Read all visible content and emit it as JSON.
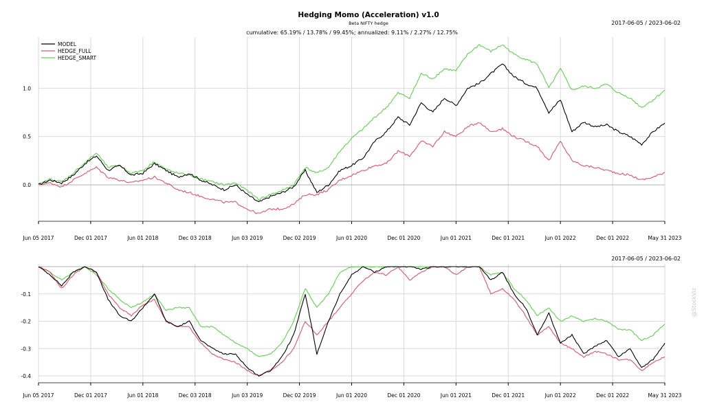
{
  "colors": {
    "MODEL": "#000000",
    "HEDGE_FULL": "#df536b",
    "HEDGE_SMART": "#61d04f",
    "grid": "#d9d9d9"
  },
  "chart_data": [
    {
      "type": "line",
      "title": "Hedging Momo (Acceleration) v1.0",
      "subtitle": "Beta NIFTY hedge",
      "stats": "cumulative: 65.19% / 13.78% / 99.45%; annualized: 9.11% / 2.27% / 12.75%",
      "date_range": "2017-06-05 / 2023-06-02",
      "legend_position": "top-left",
      "x_ticks": [
        "Jun 05 2017",
        "Dec 01 2017",
        "Jun 01 2018",
        "Dec 03 2018",
        "Jun 03 2019",
        "Dec 02 2019",
        "Jun 01 2020",
        "Dec 01 2020",
        "Jun 01 2021",
        "Dec 01 2021",
        "Jun 01 2022",
        "Dec 01 2022",
        "May 31 2023"
      ],
      "y_ticks": [
        "0.0",
        "0.5",
        "1.0"
      ],
      "ylim": [
        -0.32,
        1.5
      ],
      "grid": true,
      "series": [
        {
          "name": "MODEL",
          "values": [
            0.0,
            0.05,
            0.02,
            0.1,
            0.22,
            0.3,
            0.15,
            0.2,
            0.1,
            0.12,
            0.22,
            0.15,
            0.08,
            0.12,
            0.05,
            0.0,
            -0.05,
            0.0,
            -0.1,
            -0.18,
            -0.12,
            -0.08,
            -0.02,
            0.15,
            -0.08,
            0.0,
            0.15,
            0.2,
            0.28,
            0.45,
            0.55,
            0.7,
            0.62,
            0.85,
            0.75,
            0.9,
            0.82,
            1.0,
            1.05,
            1.15,
            1.25,
            1.12,
            1.05,
            1.0,
            0.75,
            0.88,
            0.55,
            0.65,
            0.6,
            0.62,
            0.55,
            0.5,
            0.42,
            0.55,
            0.64
          ]
        },
        {
          "name": "HEDGE_FULL",
          "values": [
            0.0,
            0.02,
            -0.02,
            0.05,
            0.12,
            0.18,
            0.08,
            0.05,
            0.02,
            0.05,
            0.08,
            0.02,
            -0.05,
            -0.08,
            -0.12,
            -0.15,
            -0.18,
            -0.18,
            -0.25,
            -0.3,
            -0.25,
            -0.25,
            -0.2,
            -0.1,
            -0.1,
            -0.05,
            0.05,
            0.1,
            0.15,
            0.2,
            0.22,
            0.35,
            0.3,
            0.45,
            0.4,
            0.55,
            0.5,
            0.6,
            0.65,
            0.55,
            0.58,
            0.5,
            0.45,
            0.4,
            0.25,
            0.45,
            0.25,
            0.2,
            0.18,
            0.15,
            0.12,
            0.1,
            0.05,
            0.08,
            0.13
          ]
        },
        {
          "name": "HEDGE_SMART",
          "values": [
            0.0,
            0.06,
            0.03,
            0.12,
            0.23,
            0.33,
            0.18,
            0.2,
            0.12,
            0.15,
            0.24,
            0.16,
            0.12,
            0.1,
            0.06,
            0.03,
            0.0,
            0.02,
            -0.06,
            -0.15,
            -0.1,
            -0.06,
            0.0,
            0.18,
            0.12,
            0.18,
            0.35,
            0.48,
            0.58,
            0.7,
            0.8,
            0.95,
            0.9,
            1.15,
            1.1,
            1.2,
            1.18,
            1.35,
            1.45,
            1.38,
            1.45,
            1.35,
            1.3,
            1.25,
            1.0,
            1.2,
            0.98,
            1.02,
            1.0,
            1.04,
            0.95,
            0.9,
            0.8,
            0.88,
            0.98
          ]
        }
      ]
    },
    {
      "type": "line",
      "date_range": "2017-06-05 / 2023-06-02",
      "x_ticks": [
        "Jun 05 2017",
        "Dec 01 2017",
        "Jun 01 2018",
        "Dec 03 2018",
        "Jun 03 2019",
        "Dec 02 2019",
        "Jun 01 2020",
        "Dec 01 2020",
        "Jun 01 2021",
        "Dec 01 2021",
        "Jun 01 2022",
        "Dec 01 2022",
        "May 31 2023"
      ],
      "y_ticks": [
        "-0.1",
        "-0.2",
        "-0.3",
        "-0.4"
      ],
      "ylim": [
        -0.41,
        0.0
      ],
      "grid": true,
      "series": [
        {
          "name": "MODEL",
          "values": [
            0.0,
            -0.03,
            -0.07,
            -0.02,
            0.0,
            -0.02,
            -0.12,
            -0.18,
            -0.2,
            -0.15,
            -0.1,
            -0.2,
            -0.22,
            -0.2,
            -0.27,
            -0.3,
            -0.32,
            -0.32,
            -0.37,
            -0.4,
            -0.38,
            -0.33,
            -0.25,
            -0.1,
            -0.32,
            -0.2,
            -0.1,
            -0.03,
            0.0,
            -0.02,
            0.0,
            0.0,
            0.0,
            -0.01,
            0.0,
            0.0,
            0.0,
            0.0,
            0.0,
            -0.05,
            -0.02,
            -0.1,
            -0.15,
            -0.25,
            -0.17,
            -0.28,
            -0.25,
            -0.32,
            -0.29,
            -0.27,
            -0.33,
            -0.3,
            -0.37,
            -0.34,
            -0.28
          ]
        },
        {
          "name": "HEDGE_FULL",
          "values": [
            0.0,
            -0.02,
            -0.08,
            -0.03,
            0.0,
            -0.02,
            -0.1,
            -0.15,
            -0.18,
            -0.14,
            -0.12,
            -0.2,
            -0.22,
            -0.22,
            -0.28,
            -0.32,
            -0.34,
            -0.35,
            -0.38,
            -0.4,
            -0.38,
            -0.35,
            -0.3,
            -0.2,
            -0.25,
            -0.2,
            -0.15,
            -0.1,
            -0.05,
            -0.02,
            -0.03,
            0.0,
            -0.05,
            -0.02,
            0.0,
            0.0,
            -0.03,
            0.0,
            0.0,
            -0.1,
            -0.08,
            -0.12,
            -0.18,
            -0.25,
            -0.22,
            -0.28,
            -0.3,
            -0.33,
            -0.31,
            -0.32,
            -0.34,
            -0.34,
            -0.38,
            -0.35,
            -0.33
          ]
        },
        {
          "name": "HEDGE_SMART",
          "values": [
            0.0,
            -0.02,
            -0.05,
            -0.02,
            0.0,
            -0.03,
            -0.08,
            -0.12,
            -0.15,
            -0.13,
            -0.1,
            -0.16,
            -0.15,
            -0.15,
            -0.22,
            -0.22,
            -0.25,
            -0.28,
            -0.3,
            -0.33,
            -0.32,
            -0.28,
            -0.2,
            -0.08,
            -0.15,
            -0.1,
            -0.02,
            0.0,
            0.0,
            0.0,
            0.0,
            0.0,
            0.0,
            0.0,
            0.0,
            0.0,
            0.0,
            0.0,
            0.0,
            -0.03,
            -0.02,
            -0.08,
            -0.12,
            -0.18,
            -0.15,
            -0.2,
            -0.18,
            -0.2,
            -0.19,
            -0.2,
            -0.23,
            -0.23,
            -0.27,
            -0.25,
            -0.21
          ]
        }
      ]
    }
  ],
  "watermark": "@StockViz"
}
